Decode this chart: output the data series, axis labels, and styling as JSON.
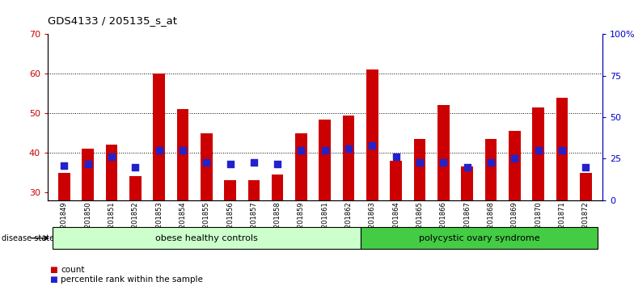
{
  "title": "GDS4133 / 205135_s_at",
  "samples": [
    "GSM201849",
    "GSM201850",
    "GSM201851",
    "GSM201852",
    "GSM201853",
    "GSM201854",
    "GSM201855",
    "GSM201856",
    "GSM201857",
    "GSM201858",
    "GSM201859",
    "GSM201861",
    "GSM201862",
    "GSM201863",
    "GSM201864",
    "GSM201865",
    "GSM201866",
    "GSM201867",
    "GSM201868",
    "GSM201869",
    "GSM201870",
    "GSM201871",
    "GSM201872"
  ],
  "counts": [
    35,
    41,
    42,
    34,
    60,
    51,
    45,
    33,
    33,
    34.5,
    45,
    48.5,
    49.5,
    61,
    38,
    43.5,
    52,
    36.5,
    43.5,
    45.5,
    51.5,
    54,
    35
  ],
  "percentiles_right": [
    21,
    22,
    26,
    20,
    30,
    30,
    23,
    22,
    23,
    22,
    30,
    30,
    31,
    33,
    26,
    23,
    23,
    20,
    23,
    25,
    30,
    30,
    20
  ],
  "group1_label": "obese healthy controls",
  "group1_count": 13,
  "group2_label": "polycystic ovary syndrome",
  "group2_count": 10,
  "ylim_left": [
    28,
    70
  ],
  "ylim_right": [
    0,
    100
  ],
  "yticks_left": [
    30,
    40,
    50,
    60,
    70
  ],
  "yticks_right": [
    0,
    25,
    50,
    75,
    100
  ],
  "ytick_labels_right": [
    "0",
    "25",
    "50",
    "75",
    "100%"
  ],
  "bar_color": "#cc0000",
  "dot_color": "#2222cc",
  "bg_color": "#ffffff",
  "group1_bg": "#ccffcc",
  "group2_bg": "#44cc44",
  "legend_count_label": "count",
  "legend_pct_label": "percentile rank within the sample",
  "left_tick_color": "#cc0000",
  "right_tick_color": "#0000cc"
}
